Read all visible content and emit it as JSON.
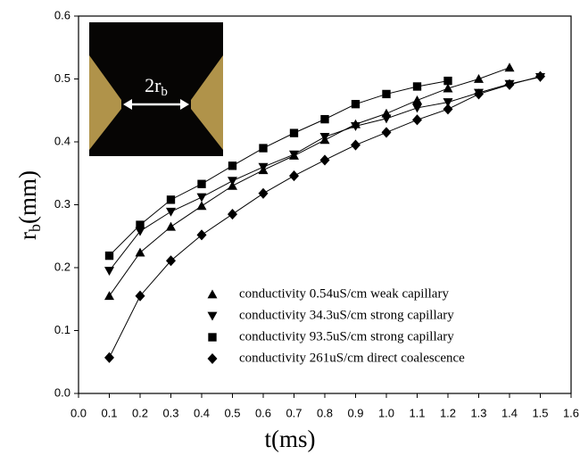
{
  "chart_data": {
    "type": "scatter",
    "xlabel": "t(ms)",
    "ylabel": "r",
    "ylabel_sub": "b",
    "ylabel_unit": "(mm)",
    "inset_label": "2r",
    "inset_label_sub": "b",
    "xlim": [
      0,
      1.6
    ],
    "ylim": [
      0,
      0.6
    ],
    "xticks": [
      {
        "value": 0,
        "label": "0.0"
      },
      0.1,
      0.2,
      0.3,
      0.4,
      0.5,
      0.6,
      0.7,
      0.8,
      0.9,
      {
        "value": 1,
        "label": "1.0"
      },
      1.1,
      1.2,
      1.3,
      1.4,
      1.5,
      1.6
    ],
    "yticks": [
      {
        "value": 0,
        "label": "0.0"
      },
      0.1,
      0.2,
      0.3,
      0.4,
      0.5,
      0.6
    ],
    "legend": "lower right",
    "series": [
      {
        "name": "conductivity 0.54uS/cm weak capillary",
        "marker": "triangle-up",
        "color": "#000000",
        "x": [
          0.1,
          0.2,
          0.3,
          0.4,
          0.5,
          0.6,
          0.7,
          0.8,
          0.9,
          1.0,
          1.1,
          1.2,
          1.3,
          1.4
        ],
        "values": [
          0.155,
          0.224,
          0.265,
          0.298,
          0.33,
          0.355,
          0.378,
          0.403,
          0.428,
          0.445,
          0.466,
          0.485,
          0.5,
          0.518
        ]
      },
      {
        "name": "conductivity 34.3uS/cm strong capillary",
        "marker": "triangle-down",
        "color": "#000000",
        "x": [
          0.1,
          0.2,
          0.3,
          0.4,
          0.5,
          0.6,
          0.7,
          0.8,
          0.9,
          1.0,
          1.1,
          1.2,
          1.3,
          1.4,
          1.5
        ],
        "values": [
          0.195,
          0.258,
          0.289,
          0.312,
          0.338,
          0.36,
          0.38,
          0.408,
          0.425,
          0.437,
          0.454,
          0.463,
          0.478,
          0.492,
          0.503
        ]
      },
      {
        "name": "conductivity 93.5uS/cm strong capillary",
        "marker": "square",
        "color": "#000000",
        "x": [
          0.1,
          0.2,
          0.3,
          0.4,
          0.5,
          0.6,
          0.7,
          0.8,
          0.9,
          1.0,
          1.1,
          1.2
        ],
        "values": [
          0.219,
          0.268,
          0.308,
          0.333,
          0.362,
          0.39,
          0.414,
          0.436,
          0.46,
          0.476,
          0.488,
          0.497
        ]
      },
      {
        "name": "conductivity 261uS/cm direct coalescence",
        "marker": "diamond",
        "color": "#000000",
        "x": [
          0.1,
          0.2,
          0.3,
          0.4,
          0.5,
          0.6,
          0.7,
          0.8,
          0.9,
          1.0,
          1.1,
          1.2,
          1.3,
          1.4,
          1.5
        ],
        "values": [
          0.057,
          0.155,
          0.211,
          0.252,
          0.285,
          0.318,
          0.346,
          0.371,
          0.395,
          0.415,
          0.435,
          0.452,
          0.476,
          0.491,
          0.504
        ]
      }
    ]
  }
}
